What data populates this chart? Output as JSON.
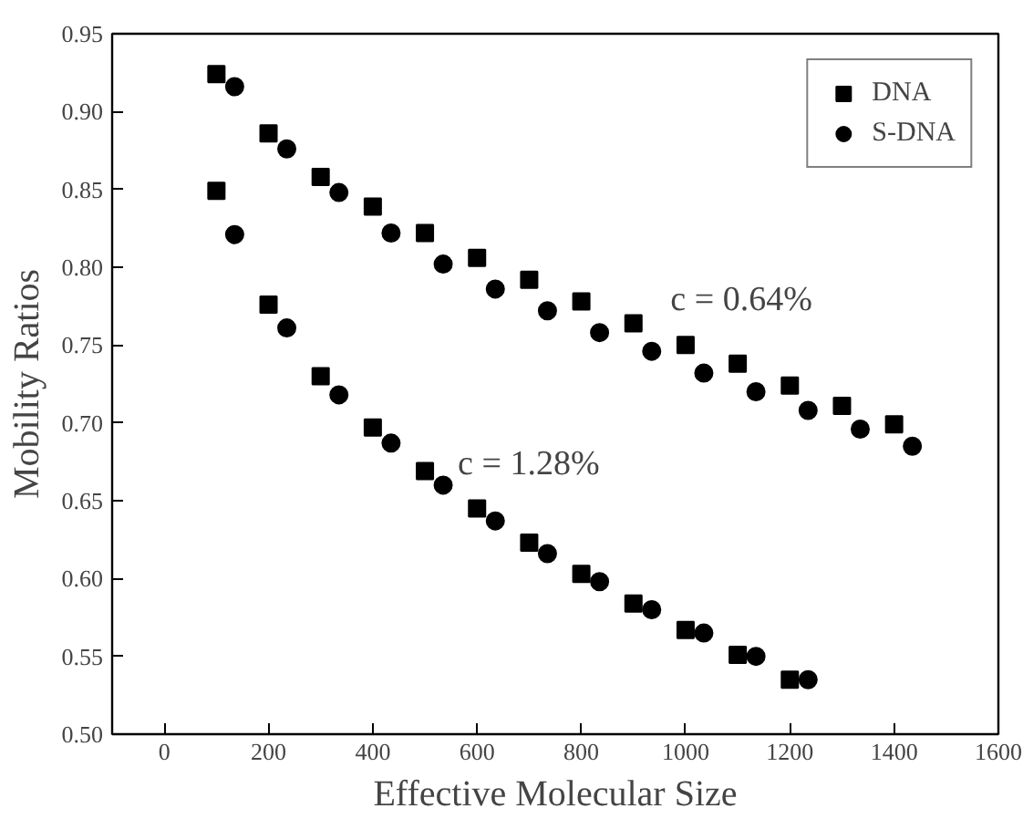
{
  "chart_data": {
    "type": "scatter",
    "xlabel": "Effective Molecular Size",
    "ylabel": "Mobility Ratios",
    "xlim": [
      -100,
      1600
    ],
    "xticks": [
      0,
      200,
      400,
      600,
      800,
      1000,
      1200,
      1400,
      1600
    ],
    "ylim": [
      0.5,
      0.95
    ],
    "yticks": [
      {
        "value": 0.5,
        "label": "0.50"
      },
      {
        "value": 0.55,
        "label": "0.55"
      },
      {
        "value": 0.6,
        "label": "0.60"
      },
      {
        "value": 0.65,
        "label": "0.65"
      },
      {
        "value": 0.7,
        "label": "0.70"
      },
      {
        "value": 0.75,
        "label": "0.75"
      },
      {
        "value": 0.8,
        "label": "0.80"
      },
      {
        "value": 0.85,
        "label": "0.85"
      },
      {
        "value": 0.9,
        "label": "0.90"
      },
      {
        "value": 0.95,
        "label": "0.95"
      }
    ],
    "grid": false,
    "legend": "top right",
    "series": [
      {
        "name": "DNA",
        "color": "#000000",
        "marker": "square",
        "x": [
          100,
          200,
          300,
          400,
          500,
          600,
          700,
          800,
          900,
          1000,
          1100,
          1200,
          1300,
          1400,
          100,
          200,
          300,
          400,
          500,
          600,
          700,
          800,
          900,
          1000,
          1100,
          1200
        ],
        "values": [
          0.924,
          0.886,
          0.858,
          0.839,
          0.822,
          0.806,
          0.792,
          0.778,
          0.764,
          0.75,
          0.738,
          0.724,
          0.711,
          0.699,
          0.849,
          0.776,
          0.73,
          0.697,
          0.669,
          0.645,
          0.623,
          0.603,
          0.584,
          0.567,
          0.551,
          0.535
        ]
      },
      {
        "name": "S-DNA",
        "color": "#000000",
        "marker": "circle",
        "x": [
          135,
          235,
          335,
          435,
          535,
          635,
          735,
          835,
          935,
          1035,
          1135,
          1235,
          1335,
          1435,
          135,
          235,
          335,
          435,
          535,
          635,
          735,
          835,
          935,
          1035,
          1135,
          1235
        ],
        "values": [
          0.916,
          0.876,
          0.848,
          0.822,
          0.802,
          0.786,
          0.772,
          0.758,
          0.746,
          0.732,
          0.72,
          0.708,
          0.696,
          0.685,
          0.821,
          0.761,
          0.718,
          0.687,
          0.66,
          0.637,
          0.616,
          0.598,
          0.58,
          0.565,
          0.55,
          0.535
        ]
      }
    ],
    "annotations": [
      "c = 0.64%",
      "c = 1.28%"
    ]
  }
}
